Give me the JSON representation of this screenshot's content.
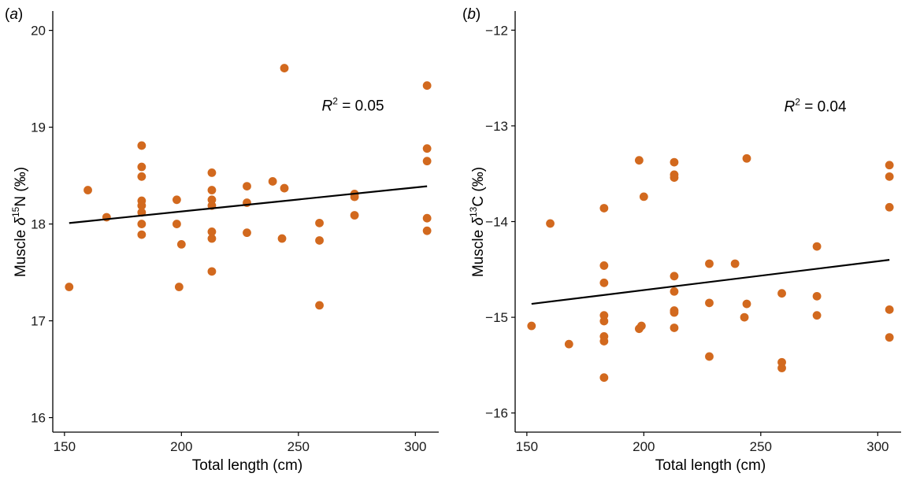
{
  "chart_data": [
    {
      "type": "scatter",
      "panel": "a",
      "xlabel": "Total length (cm)",
      "ylabel_prefix": "Muscle ",
      "ylabel_delta": "δ",
      "ylabel_isotope": "15",
      "ylabel_element": "N",
      "ylabel_unit": " (‰)",
      "xlim": [
        145,
        310
      ],
      "ylim": [
        15.85,
        20.2
      ],
      "x_ticks": [
        150,
        200,
        250,
        300
      ],
      "y_ticks": [
        16,
        17,
        18,
        19,
        20
      ],
      "grid": false,
      "annotation": {
        "r": "R",
        "sup": "2",
        "text": " = 0.05",
        "x": 260,
        "y": 19.17
      },
      "fit_line": {
        "x": [
          152,
          305
        ],
        "y": [
          18.01,
          18.39
        ]
      },
      "marker_color": "#d2691e",
      "points": [
        {
          "x": 152,
          "y": 17.35
        },
        {
          "x": 160,
          "y": 18.35
        },
        {
          "x": 168,
          "y": 18.07
        },
        {
          "x": 183,
          "y": 18.81
        },
        {
          "x": 183,
          "y": 18.59
        },
        {
          "x": 183,
          "y": 18.49
        },
        {
          "x": 183,
          "y": 18.24
        },
        {
          "x": 183,
          "y": 18.19
        },
        {
          "x": 183,
          "y": 18.12
        },
        {
          "x": 183,
          "y": 18.0
        },
        {
          "x": 183,
          "y": 17.89
        },
        {
          "x": 198,
          "y": 18.25
        },
        {
          "x": 198,
          "y": 18.0
        },
        {
          "x": 199,
          "y": 17.35
        },
        {
          "x": 200,
          "y": 17.79
        },
        {
          "x": 213,
          "y": 18.53
        },
        {
          "x": 213,
          "y": 18.35
        },
        {
          "x": 213,
          "y": 18.25
        },
        {
          "x": 213,
          "y": 18.19
        },
        {
          "x": 213,
          "y": 17.92
        },
        {
          "x": 213,
          "y": 17.85
        },
        {
          "x": 213,
          "y": 17.51
        },
        {
          "x": 228,
          "y": 18.39
        },
        {
          "x": 228,
          "y": 18.22
        },
        {
          "x": 228,
          "y": 17.91
        },
        {
          "x": 239,
          "y": 18.44
        },
        {
          "x": 243,
          "y": 17.85
        },
        {
          "x": 244,
          "y": 19.61
        },
        {
          "x": 244,
          "y": 18.37
        },
        {
          "x": 259,
          "y": 18.01
        },
        {
          "x": 259,
          "y": 17.83
        },
        {
          "x": 259,
          "y": 17.16
        },
        {
          "x": 274,
          "y": 18.31
        },
        {
          "x": 274,
          "y": 18.28
        },
        {
          "x": 274,
          "y": 18.09
        },
        {
          "x": 305,
          "y": 19.43
        },
        {
          "x": 305,
          "y": 18.78
        },
        {
          "x": 305,
          "y": 18.65
        },
        {
          "x": 305,
          "y": 18.06
        },
        {
          "x": 305,
          "y": 17.93
        }
      ]
    },
    {
      "type": "scatter",
      "panel": "b",
      "xlabel": "Total length (cm)",
      "ylabel_prefix": "Muscle ",
      "ylabel_delta": "δ",
      "ylabel_isotope": "13",
      "ylabel_element": "C",
      "ylabel_unit": " (‰)",
      "xlim": [
        145,
        310
      ],
      "ylim": [
        -16.2,
        -11.8
      ],
      "x_ticks": [
        150,
        200,
        250,
        300
      ],
      "y_ticks": [
        -16,
        -15,
        -14,
        -13,
        -12
      ],
      "y_tick_labels": [
        "−16",
        "−15",
        "−14",
        "−13",
        "−12"
      ],
      "grid": false,
      "annotation": {
        "r": "R",
        "sup": "2",
        "text": " = 0.04",
        "x": 260,
        "y": -12.85
      },
      "fit_line": {
        "x": [
          152,
          305
        ],
        "y": [
          -14.86,
          -14.4
        ]
      },
      "marker_color": "#d2691e",
      "points": [
        {
          "x": 152,
          "y": -15.09
        },
        {
          "x": 160,
          "y": -14.02
        },
        {
          "x": 168,
          "y": -15.28
        },
        {
          "x": 183,
          "y": -13.86
        },
        {
          "x": 183,
          "y": -14.46
        },
        {
          "x": 183,
          "y": -14.64
        },
        {
          "x": 183,
          "y": -14.98
        },
        {
          "x": 183,
          "y": -15.04
        },
        {
          "x": 183,
          "y": -15.2
        },
        {
          "x": 183,
          "y": -15.25
        },
        {
          "x": 183,
          "y": -15.63
        },
        {
          "x": 198,
          "y": -13.36
        },
        {
          "x": 198,
          "y": -15.12
        },
        {
          "x": 199,
          "y": -15.09
        },
        {
          "x": 200,
          "y": -13.74
        },
        {
          "x": 213,
          "y": -13.38
        },
        {
          "x": 213,
          "y": -13.51
        },
        {
          "x": 213,
          "y": -13.54
        },
        {
          "x": 213,
          "y": -14.57
        },
        {
          "x": 213,
          "y": -14.73
        },
        {
          "x": 213,
          "y": -14.93
        },
        {
          "x": 213,
          "y": -14.95
        },
        {
          "x": 213,
          "y": -15.11
        },
        {
          "x": 228,
          "y": -14.44
        },
        {
          "x": 228,
          "y": -14.85
        },
        {
          "x": 228,
          "y": -15.41
        },
        {
          "x": 239,
          "y": -14.44
        },
        {
          "x": 243,
          "y": -15.0
        },
        {
          "x": 244,
          "y": -13.34
        },
        {
          "x": 244,
          "y": -14.86
        },
        {
          "x": 259,
          "y": -14.75
        },
        {
          "x": 259,
          "y": -15.47
        },
        {
          "x": 259,
          "y": -15.53
        },
        {
          "x": 274,
          "y": -14.26
        },
        {
          "x": 274,
          "y": -14.78
        },
        {
          "x": 274,
          "y": -14.98
        },
        {
          "x": 305,
          "y": -13.41
        },
        {
          "x": 305,
          "y": -13.53
        },
        {
          "x": 305,
          "y": -13.85
        },
        {
          "x": 305,
          "y": -14.92
        },
        {
          "x": 305,
          "y": -15.21
        }
      ]
    }
  ]
}
